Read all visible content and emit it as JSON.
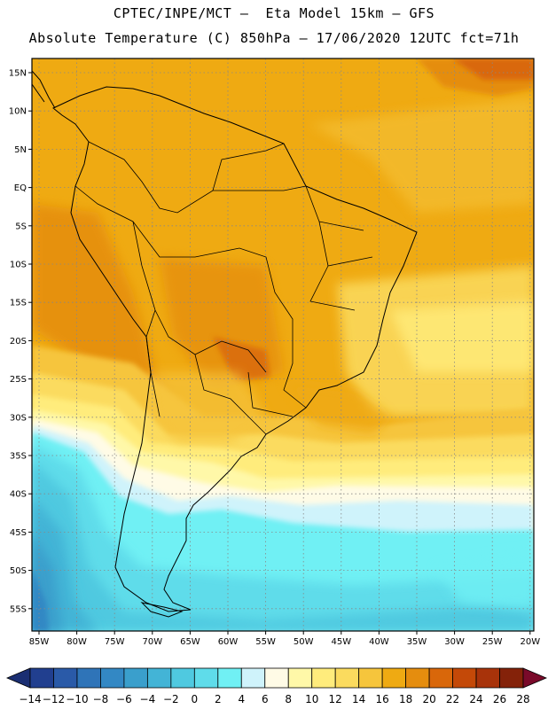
{
  "header": {
    "line1": "CPTEC/INPE/MCT –  Eta Model 15km – GFS",
    "line2": "Absolute Temperature (C) 850hPa – 17/06/2020 12UTC fct=71h"
  },
  "map": {
    "lat_labels": [
      "15N",
      "10N",
      "5N",
      "EQ",
      "5S",
      "10S",
      "15S",
      "20S",
      "25S",
      "30S",
      "35S",
      "40S",
      "45S",
      "50S",
      "55S"
    ],
    "lon_labels": [
      "85W",
      "80W",
      "75W",
      "70W",
      "65W",
      "60W",
      "55W",
      "50W",
      "45W",
      "40W",
      "35W",
      "30W",
      "25W",
      "20W"
    ]
  },
  "colorbar": {
    "labels": [
      "-14",
      "-12",
      "-10",
      "-8",
      "-6",
      "-4",
      "-2",
      "0",
      "2",
      "4",
      "6",
      "8",
      "10",
      "12",
      "14",
      "16",
      "18",
      "20",
      "22",
      "24",
      "26",
      "28"
    ],
    "colors": [
      "#213f8f",
      "#2a5aa8",
      "#2f74b8",
      "#3388c4",
      "#3a9fcc",
      "#43b4d6",
      "#4fc9e0",
      "#5fdcea",
      "#70f0f4",
      "#cff3fb",
      "#fffbe6",
      "#fff8a8",
      "#ffec7c",
      "#fbdb5e",
      "#f6c53c",
      "#efaa12",
      "#e58d0e",
      "#d9670a",
      "#c44908",
      "#a8330a",
      "#842209"
    ],
    "low_color": "#1a2e72",
    "high_color": "#7a0a2a"
  }
}
